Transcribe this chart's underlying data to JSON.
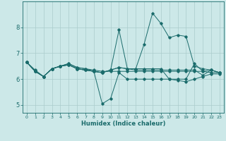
{
  "xlabel": "Humidex (Indice chaleur)",
  "bg_color": "#cce8e8",
  "grid_color": "#aacccc",
  "line_color": "#1a6b6b",
  "xlim": [
    -0.5,
    23.5
  ],
  "ylim": [
    4.7,
    9.0
  ],
  "yticks": [
    5,
    6,
    7,
    8
  ],
  "xticks": [
    0,
    1,
    2,
    3,
    4,
    5,
    6,
    7,
    8,
    9,
    10,
    11,
    12,
    13,
    14,
    15,
    16,
    17,
    18,
    19,
    20,
    21,
    22,
    23
  ],
  "series": [
    [
      6.65,
      6.35,
      6.1,
      6.4,
      6.5,
      6.6,
      6.45,
      6.4,
      6.35,
      6.3,
      6.3,
      6.3,
      6.3,
      6.3,
      6.3,
      6.3,
      6.3,
      6.3,
      6.3,
      6.3,
      6.3,
      6.3,
      6.25,
      6.25
    ],
    [
      6.65,
      6.3,
      6.1,
      6.4,
      6.5,
      6.6,
      6.45,
      6.4,
      6.3,
      5.05,
      5.25,
      6.25,
      6.0,
      6.0,
      6.0,
      6.0,
      6.0,
      6.0,
      5.95,
      5.9,
      6.0,
      6.1,
      6.2,
      6.2
    ],
    [
      6.65,
      6.3,
      6.1,
      6.4,
      6.5,
      6.55,
      6.4,
      6.35,
      6.3,
      6.25,
      6.35,
      6.45,
      6.4,
      6.4,
      7.35,
      8.55,
      8.15,
      7.6,
      7.7,
      7.65,
      6.5,
      6.4,
      6.35,
      6.25
    ],
    [
      6.65,
      6.3,
      6.1,
      6.4,
      6.5,
      6.55,
      6.4,
      6.35,
      6.3,
      6.25,
      6.35,
      7.9,
      6.4,
      6.35,
      6.35,
      6.35,
      6.35,
      6.35,
      6.35,
      6.35,
      6.35,
      6.15,
      6.35,
      6.25
    ],
    [
      6.65,
      6.3,
      6.1,
      6.4,
      6.5,
      6.55,
      6.4,
      6.35,
      6.3,
      6.25,
      6.35,
      6.45,
      6.4,
      6.4,
      6.4,
      6.4,
      6.4,
      6.0,
      6.0,
      6.0,
      6.6,
      6.3,
      6.35,
      6.25
    ]
  ]
}
